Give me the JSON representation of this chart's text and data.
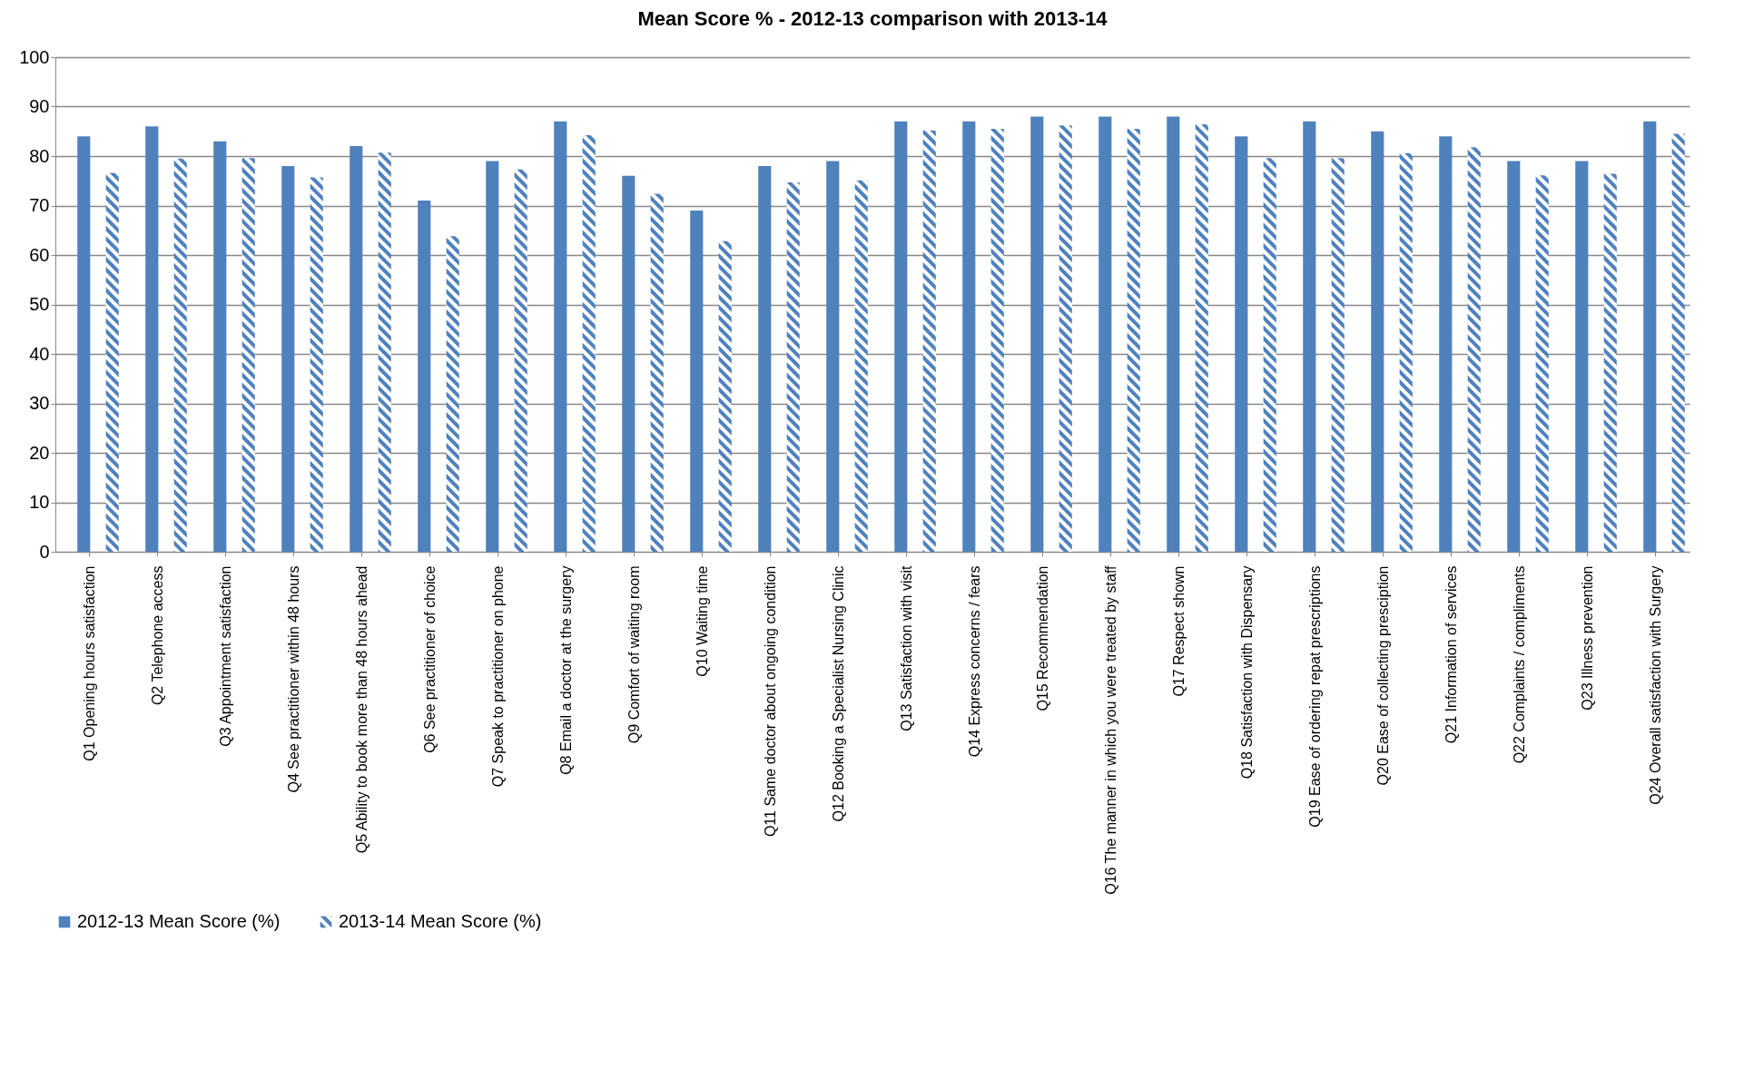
{
  "chart_data": {
    "type": "bar",
    "title": "Mean Score % - 2012-13 comparison with 2013-14",
    "categories": [
      "Q1  Opening hours satisfaction",
      "Q2 Telephone access",
      "Q3 Appointment satisfaction",
      "Q4 See practitioner within 48 hours",
      "Q5 Ability to book more than 48 hours ahead",
      "Q6 See practitioner of choice",
      "Q7 Speak to practitioner on phone",
      "Q8 Email a doctor at the surgery",
      "Q9 Comfort of waiting room",
      "Q10 Waiting time",
      "Q11 Same doctor about ongoing condition",
      "Q12 Booking a Specialist Nursing Clinic",
      "Q13 Satisfaction with visit",
      "Q14 Express concerns / fears",
      "Q15 Recommendation",
      "Q16 The manner in which you were treated by staff",
      "Q17 Respect shown",
      "Q18 Satisfaction with Dispensary",
      "Q19 Ease of ordering repat prescriptions",
      "Q20 Ease of collecting presciption",
      "Q21 Information of services",
      "Q22 Complaints / compliments",
      "Q23 Illness prevention",
      "Q24 Overall satisfaction with Surgery"
    ],
    "series": [
      {
        "name": "2012-13 Mean Score (%)",
        "color": "#4f81bd",
        "values": [
          84,
          86,
          83,
          78,
          82,
          71,
          79,
          87,
          76,
          69,
          78,
          79,
          87,
          87,
          88,
          88,
          88,
          84,
          87,
          85,
          84,
          79,
          79,
          87
        ]
      },
      {
        "name": "2013-14 Mean Score (%)",
        "color": "#4f81bd",
        "values": [
          76.6,
          79.5,
          79.6,
          75.7,
          80.7,
          63.8,
          77.3,
          84.2,
          72.4,
          62.8,
          74.7,
          75.1,
          85.2,
          85.5,
          86.2,
          85.5,
          86.4,
          79.6,
          79.6,
          80.6,
          81.8,
          76.1,
          76.4,
          84.5
        ]
      }
    ],
    "ylim": [
      0,
      100
    ],
    "yticks": [
      0,
      10,
      20,
      30,
      40,
      50,
      60,
      70,
      80,
      90,
      100
    ],
    "grid": "y",
    "legend": "bottom"
  }
}
